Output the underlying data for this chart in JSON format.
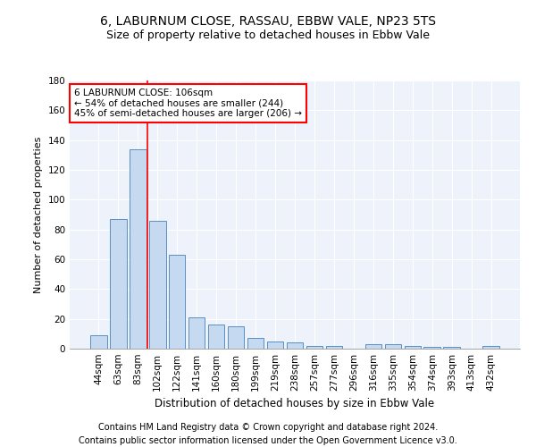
{
  "title1": "6, LABURNUM CLOSE, RASSAU, EBBW VALE, NP23 5TS",
  "title2": "Size of property relative to detached houses in Ebbw Vale",
  "xlabel": "Distribution of detached houses by size in Ebbw Vale",
  "ylabel": "Number of detached properties",
  "categories": [
    "44sqm",
    "63sqm",
    "83sqm",
    "102sqm",
    "122sqm",
    "141sqm",
    "160sqm",
    "180sqm",
    "199sqm",
    "219sqm",
    "238sqm",
    "257sqm",
    "277sqm",
    "296sqm",
    "316sqm",
    "335sqm",
    "354sqm",
    "374sqm",
    "393sqm",
    "413sqm",
    "432sqm"
  ],
  "values": [
    9,
    87,
    134,
    86,
    63,
    21,
    16,
    15,
    7,
    5,
    4,
    2,
    2,
    0,
    3,
    3,
    2,
    1,
    1,
    0,
    2
  ],
  "bar_color": "#c5d9f0",
  "bar_edge_color": "#5a8fc2",
  "vline_x": 2.5,
  "vline_color": "red",
  "annotation_text": "6 LABURNUM CLOSE: 106sqm\n← 54% of detached houses are smaller (244)\n45% of semi-detached houses are larger (206) →",
  "annotation_box_color": "white",
  "annotation_box_edge": "red",
  "ylim": [
    0,
    180
  ],
  "yticks": [
    0,
    20,
    40,
    60,
    80,
    100,
    120,
    140,
    160,
    180
  ],
  "bg_color": "#eef2fb",
  "footer1": "Contains HM Land Registry data © Crown copyright and database right 2024.",
  "footer2": "Contains public sector information licensed under the Open Government Licence v3.0.",
  "title1_fontsize": 10,
  "title2_fontsize": 9,
  "xlabel_fontsize": 8.5,
  "ylabel_fontsize": 8,
  "tick_fontsize": 7.5,
  "annotation_fontsize": 7.5,
  "footer_fontsize": 7
}
